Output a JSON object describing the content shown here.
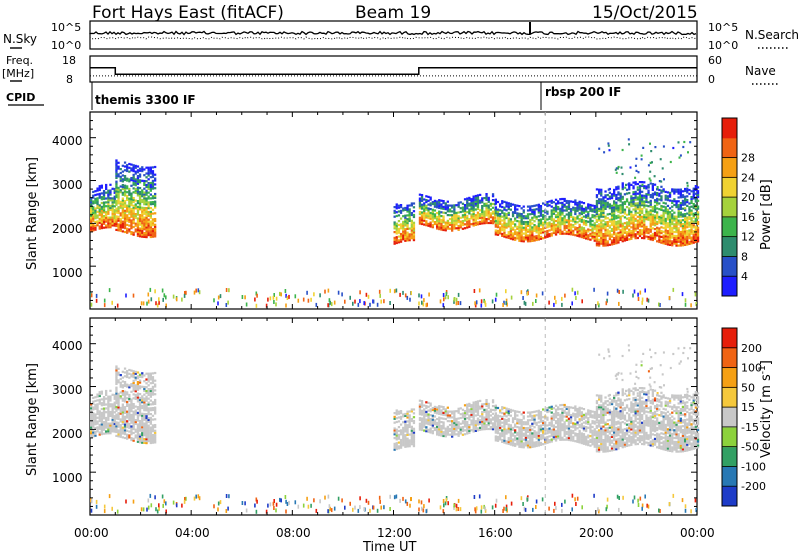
{
  "header": {
    "station": "Fort Hays East (fitACF)",
    "beam": "Beam 19",
    "date": "15/Oct/2015"
  },
  "side_labels": {
    "nsky": "N.Sky",
    "nsearch": "N.Search",
    "freq": "Freq.",
    "freq_unit": "[MHz]",
    "nave": "Nave",
    "cpid": "CPID"
  },
  "noise_panel": {
    "left_ticks": [
      "10^5",
      "10^0"
    ],
    "right_ticks": [
      "10^5",
      "10^0"
    ]
  },
  "freq_panel": {
    "left_ticks": [
      "18",
      "8"
    ],
    "right_ticks": [
      "60",
      "0"
    ],
    "freq_steps": [
      {
        "t": 0.0,
        "mhz": 13.5
      },
      {
        "t": 1.0,
        "mhz": 11.0
      },
      {
        "t": 13.0,
        "mhz": 13.5
      },
      {
        "t": 24.0,
        "mhz": 13.5
      }
    ],
    "nave_level": 14
  },
  "cpid": [
    {
      "label": "themis 3300 IF",
      "start_hour": 0
    },
    {
      "label": "rbsp 200 IF",
      "start_hour": 18
    }
  ],
  "chart_data": [
    {
      "type": "heatmap",
      "name": "power",
      "xlabel": "",
      "ylabel": "Slant Range [km]",
      "ylim": [
        0,
        4600
      ],
      "xlim": [
        0,
        24
      ],
      "y_ticks": [
        "1000",
        "2000",
        "3000",
        "4000"
      ],
      "colorbar_label": "Power [dB]",
      "colorbar_ticks": [
        "4",
        "8",
        "12",
        "16",
        "20",
        "24",
        "28"
      ],
      "colorbar_colors": [
        "#1e1eff",
        "#2850c8",
        "#2e8c6e",
        "#3cb44b",
        "#a5d23c",
        "#f0d232",
        "#f5a014",
        "#f06414",
        "#e61e0a"
      ],
      "echo_bands": [
        {
          "start": 0.0,
          "end": 1.0,
          "low": 1800,
          "high": 2800
        },
        {
          "start": 1.0,
          "end": 2.6,
          "low": 1750,
          "high": 3400
        },
        {
          "start": 12.0,
          "end": 12.8,
          "low": 1500,
          "high": 2400
        },
        {
          "start": 13.0,
          "end": 16.0,
          "low": 1900,
          "high": 2600
        },
        {
          "start": 16.0,
          "end": 20.0,
          "low": 1650,
          "high": 2500
        },
        {
          "start": 20.0,
          "end": 24.0,
          "low": 1550,
          "high": 2900
        }
      ]
    },
    {
      "type": "heatmap",
      "name": "velocity",
      "xlabel": "Time UT",
      "ylabel": "Slant Range [km]",
      "ylim": [
        0,
        4600
      ],
      "xlim": [
        0,
        24
      ],
      "x_ticks": [
        "00:00",
        "04:00",
        "08:00",
        "12:00",
        "16:00",
        "20:00",
        "00:00"
      ],
      "y_ticks": [
        "1000",
        "2000",
        "3000",
        "4000"
      ],
      "colorbar_label": "Velocity [m s^-1]",
      "colorbar_ticks": [
        "200",
        "100",
        "50",
        "15",
        "-15",
        "-50",
        "-100",
        "-200"
      ],
      "colorbar_colors": [
        "#1e3cc8",
        "#2878b4",
        "#32a064",
        "#8cd23c",
        "#c8c8c8",
        "#f5c83c",
        "#f5a014",
        "#f06414",
        "#e61e0a"
      ],
      "ground_scatter_color": "#c8c8c8"
    }
  ],
  "time_marker": {
    "hour": 18
  }
}
